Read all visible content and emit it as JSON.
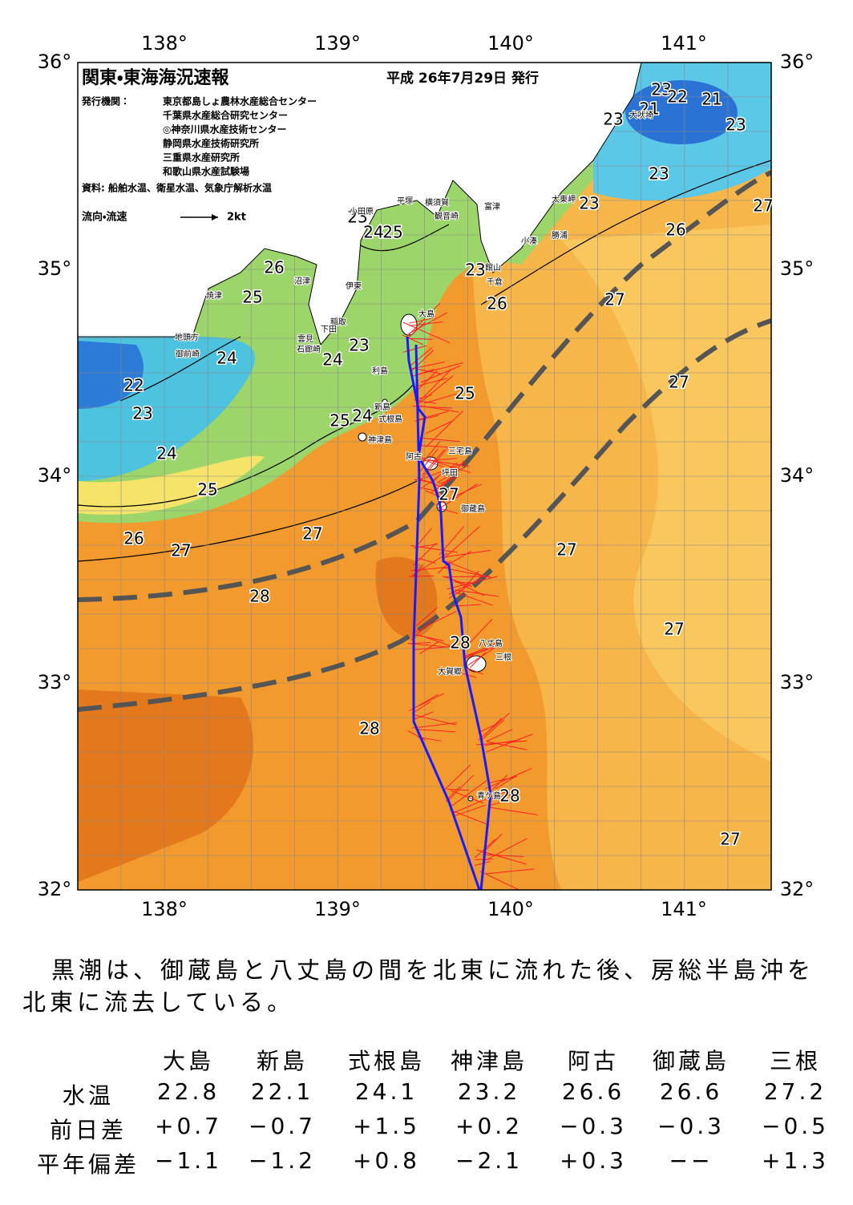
{
  "header": {
    "title": "関東・東海海況速報",
    "date": "平成 26年7月29日 発行",
    "publisher_label": "発行機関：",
    "publishers": [
      "東京都島しょ農林水産総合センター",
      "千葉県水産総合研究センター",
      "◎神奈川県水産技術センター",
      "静岡県水産技術研究所",
      "三重県水産研究所",
      "和歌山県水産試験場"
    ],
    "source": "資料: 船舶水温、衛星水温、気象庁解析水温",
    "legend_label": "流向・流速",
    "legend_scale": "2kt"
  },
  "map": {
    "lon_labels": [
      "138°",
      "139°",
      "140°",
      "141°"
    ],
    "lat_labels": [
      "36°",
      "35°",
      "34°",
      "33°",
      "32°"
    ],
    "isotherm_labels": [
      "23",
      "22",
      "21",
      "21",
      "23",
      "23",
      "23",
      "23",
      "27",
      "26",
      "23",
      "24",
      "25",
      "26",
      "23",
      "25",
      "26",
      "27",
      "23",
      "24",
      "24",
      "22",
      "27",
      "25",
      "23",
      "25",
      "24",
      "24",
      "27",
      "25",
      "27",
      "26",
      "27",
      "27",
      "28",
      "27",
      "28",
      "28",
      "28",
      "27"
    ],
    "places": [
      "平塚",
      "横須賀",
      "観音崎",
      "富津",
      "小田原",
      "太東岬",
      "勝浦",
      "小湊",
      "館山",
      "千倉",
      "沼津",
      "焼津",
      "伊東",
      "大島",
      "稲取",
      "下田",
      "雲見",
      "石廊崎",
      "地頭方",
      "御前崎",
      "利島",
      "新島",
      "式根島",
      "神津島",
      "三宅島",
      "阿古",
      "坪田",
      "御蔵島",
      "八丈島",
      "三根",
      "大賀郷",
      "青ケ島",
      "犬吠埼"
    ]
  },
  "summary": "黒潮は、御蔵島と八丈島の間を北東に流れた後、房総半島沖を北東に流去している。",
  "table": {
    "columns": [
      "大島",
      "新島",
      "式根島",
      "神津島",
      "阿古",
      "御蔵島",
      "三根"
    ],
    "rows": [
      {
        "label": "水温",
        "cells": [
          "22.8",
          "22.1",
          "24.1",
          "23.2",
          "26.6",
          "26.6",
          "27.2"
        ]
      },
      {
        "label": "前日差",
        "cells": [
          "+0.7",
          "−0.7",
          "+1.5",
          "+0.2",
          "−0.3",
          "−0.3",
          "−0.5"
        ]
      },
      {
        "label": "平年偏差",
        "cells": [
          "−1.1",
          "−1.2",
          "+0.8",
          "−2.1",
          "+0.3",
          "−−",
          "+1.3"
        ]
      }
    ]
  }
}
